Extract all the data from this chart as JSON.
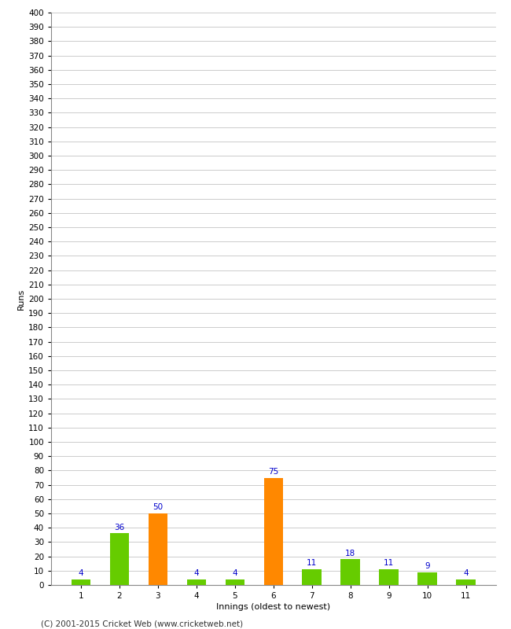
{
  "xlabel": "Innings (oldest to newest)",
  "ylabel": "Runs",
  "categories": [
    1,
    2,
    3,
    4,
    5,
    6,
    7,
    8,
    9,
    10,
    11
  ],
  "values": [
    4,
    36,
    50,
    4,
    4,
    75,
    11,
    18,
    11,
    9,
    4
  ],
  "bar_colors": [
    "#66cc00",
    "#66cc00",
    "#ff8800",
    "#66cc00",
    "#66cc00",
    "#ff8800",
    "#66cc00",
    "#66cc00",
    "#66cc00",
    "#66cc00",
    "#66cc00"
  ],
  "ylim": [
    0,
    400
  ],
  "yticks": [
    0,
    10,
    20,
    30,
    40,
    50,
    60,
    70,
    80,
    90,
    100,
    110,
    120,
    130,
    140,
    150,
    160,
    170,
    180,
    190,
    200,
    210,
    220,
    230,
    240,
    250,
    260,
    270,
    280,
    290,
    300,
    310,
    320,
    330,
    340,
    350,
    360,
    370,
    380,
    390,
    400
  ],
  "label_color": "#0000cc",
  "label_fontsize": 7.5,
  "tick_fontsize": 7.5,
  "xlabel_fontsize": 8,
  "ylabel_fontsize": 8,
  "footer": "(C) 2001-2015 Cricket Web (www.cricketweb.net)",
  "background_color": "#ffffff",
  "grid_color": "#cccccc",
  "bar_width": 0.5
}
